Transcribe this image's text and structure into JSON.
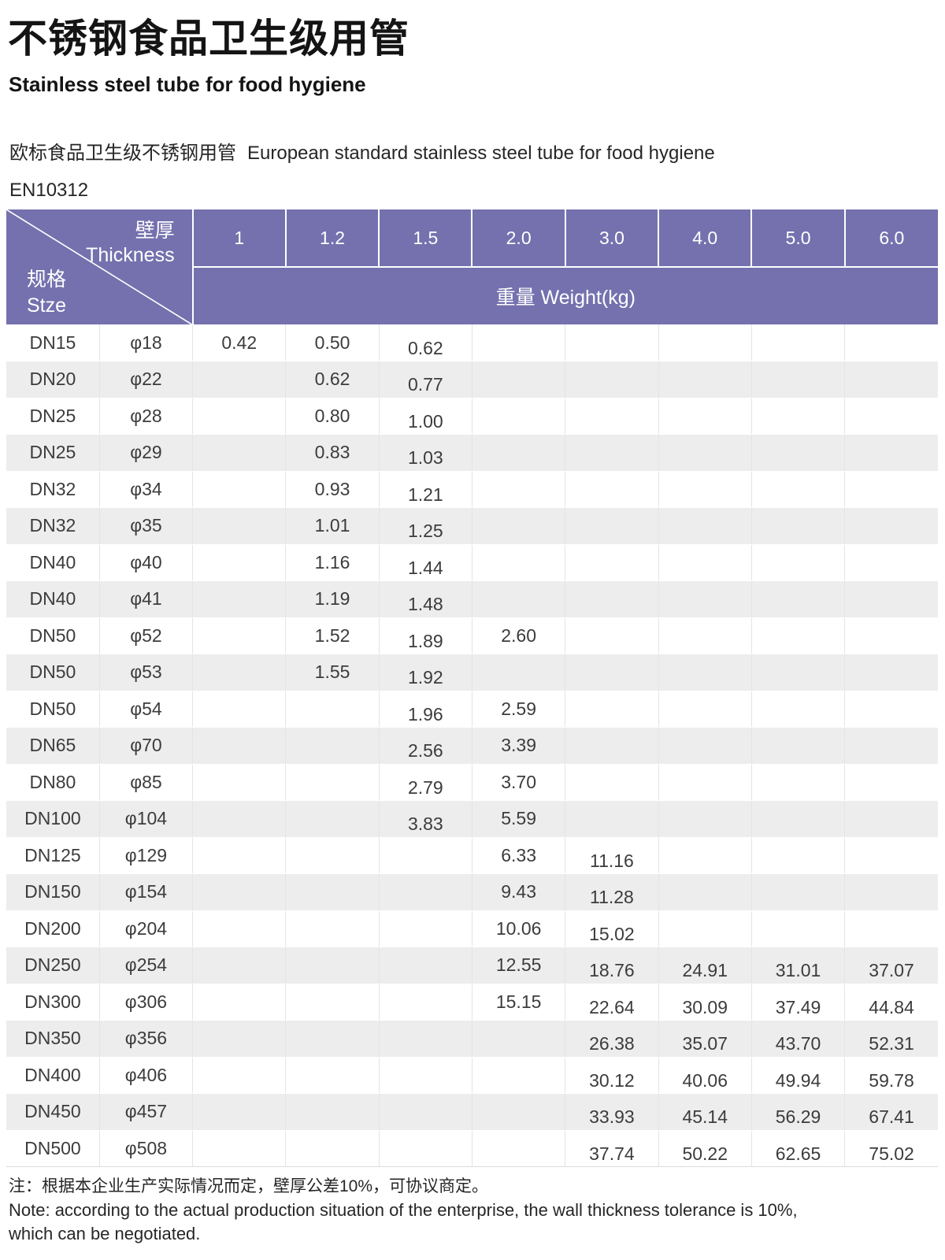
{
  "page": {
    "title_zh": "不锈钢食品卫生级用管",
    "title_en": "Stainless steel tube for food hygiene",
    "intro_zh": "欧标食品卫生级不锈钢用管",
    "intro_en": "European standard stainless steel tube for food hygiene",
    "standard": "EN10312"
  },
  "table": {
    "corner": {
      "thickness_zh": "壁厚",
      "thickness_en": "Thickness",
      "size_zh": "规格",
      "size_en": "Stze"
    },
    "weight_header": "重量 Weight(kg)",
    "thickness_columns": [
      "1",
      "1.2",
      "1.5",
      "2.0",
      "3.0",
      "4.0",
      "5.0",
      "6.0"
    ],
    "rows": [
      {
        "dn": "DN15",
        "dia": "φ18",
        "weights": [
          "0.42",
          "0.50",
          "0.62",
          "",
          "",
          "",
          "",
          ""
        ]
      },
      {
        "dn": "DN20",
        "dia": "φ22",
        "weights": [
          "",
          "0.62",
          "0.77",
          "",
          "",
          "",
          "",
          ""
        ]
      },
      {
        "dn": "DN25",
        "dia": "φ28",
        "weights": [
          "",
          "0.80",
          "1.00",
          "",
          "",
          "",
          "",
          ""
        ]
      },
      {
        "dn": "DN25",
        "dia": "φ29",
        "weights": [
          "",
          "0.83",
          "1.03",
          "",
          "",
          "",
          "",
          ""
        ]
      },
      {
        "dn": "DN32",
        "dia": "φ34",
        "weights": [
          "",
          "0.93",
          "1.21",
          "",
          "",
          "",
          "",
          ""
        ]
      },
      {
        "dn": "DN32",
        "dia": "φ35",
        "weights": [
          "",
          "1.01",
          "1.25",
          "",
          "",
          "",
          "",
          ""
        ]
      },
      {
        "dn": "DN40",
        "dia": "φ40",
        "weights": [
          "",
          "1.16",
          "1.44",
          "",
          "",
          "",
          "",
          ""
        ]
      },
      {
        "dn": "DN40",
        "dia": "φ41",
        "weights": [
          "",
          "1.19",
          "1.48",
          "",
          "",
          "",
          "",
          ""
        ]
      },
      {
        "dn": "DN50",
        "dia": "φ52",
        "weights": [
          "",
          "1.52",
          "1.89",
          "2.60",
          "",
          "",
          "",
          ""
        ]
      },
      {
        "dn": "DN50",
        "dia": "φ53",
        "weights": [
          "",
          "1.55",
          "1.92",
          "",
          "",
          "",
          "",
          ""
        ]
      },
      {
        "dn": "DN50",
        "dia": "φ54",
        "weights": [
          "",
          "",
          "1.96",
          "2.59",
          "",
          "",
          "",
          ""
        ]
      },
      {
        "dn": "DN65",
        "dia": "φ70",
        "weights": [
          "",
          "",
          "2.56",
          "3.39",
          "",
          "",
          "",
          ""
        ]
      },
      {
        "dn": "DN80",
        "dia": "φ85",
        "weights": [
          "",
          "",
          "2.79",
          "3.70",
          "",
          "",
          "",
          ""
        ]
      },
      {
        "dn": "DN100",
        "dia": "φ104",
        "weights": [
          "",
          "",
          "3.83",
          "5.59",
          "",
          "",
          "",
          ""
        ]
      },
      {
        "dn": "DN125",
        "dia": "φ129",
        "weights": [
          "",
          "",
          "",
          "6.33",
          "11.16",
          "",
          "",
          ""
        ]
      },
      {
        "dn": "DN150",
        "dia": "φ154",
        "weights": [
          "",
          "",
          "",
          "9.43",
          "11.28",
          "",
          "",
          ""
        ]
      },
      {
        "dn": "DN200",
        "dia": "φ204",
        "weights": [
          "",
          "",
          "",
          "10.06",
          "15.02",
          "",
          "",
          ""
        ]
      },
      {
        "dn": "DN250",
        "dia": "φ254",
        "weights": [
          "",
          "",
          "",
          "12.55",
          "18.76",
          "24.91",
          "31.01",
          "37.07"
        ]
      },
      {
        "dn": "DN300",
        "dia": "φ306",
        "weights": [
          "",
          "",
          "",
          "15.15",
          "22.64",
          "30.09",
          "37.49",
          "44.84"
        ]
      },
      {
        "dn": "DN350",
        "dia": "φ356",
        "weights": [
          "",
          "",
          "",
          "",
          "26.38",
          "35.07",
          "43.70",
          "52.31"
        ]
      },
      {
        "dn": "DN400",
        "dia": "φ406",
        "weights": [
          "",
          "",
          "",
          "",
          "30.12",
          "40.06",
          "49.94",
          "59.78"
        ]
      },
      {
        "dn": "DN450",
        "dia": "φ457",
        "weights": [
          "",
          "",
          "",
          "",
          "33.93",
          "45.14",
          "56.29",
          "67.41"
        ]
      },
      {
        "dn": "DN500",
        "dia": "φ508",
        "weights": [
          "",
          "",
          "",
          "",
          "37.74",
          "50.22",
          "62.65",
          "75.02"
        ]
      }
    ]
  },
  "notes": {
    "zh": "注：根据本企业生产实际情况而定，壁厚公差10%，可协议商定。",
    "en_line1": "Note: according to the actual production situation of the enterprise, the wall thickness tolerance is 10%,",
    "en_line2": "which can be negotiated."
  },
  "colors": {
    "header_purple": "#7571ae",
    "stripe_gray": "#ededee",
    "body_text": "#3c3c3c"
  }
}
